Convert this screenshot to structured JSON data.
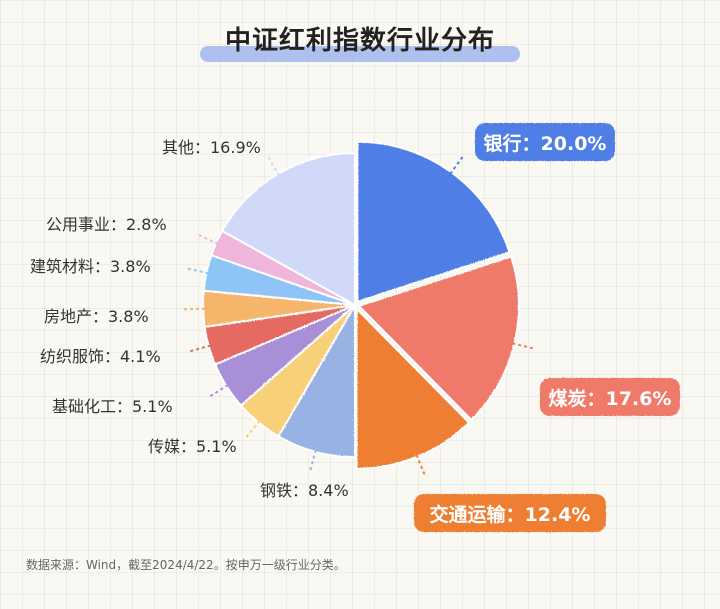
{
  "chart_data": {
    "type": "pie",
    "title": "中证红利指数行业分布",
    "slices": [
      {
        "label": "银行：20.0%",
        "value": 20.0,
        "color": "#4f7fe6",
        "callout": true
      },
      {
        "label": "煤炭：17.6%",
        "value": 17.6,
        "color": "#f07a6a",
        "callout": true
      },
      {
        "label": "交通运输：12.4%",
        "value": 12.4,
        "color": "#ee7f32",
        "callout": true
      },
      {
        "label": "钢铁：8.4%",
        "value": 8.4,
        "color": "#98b2e4",
        "callout": false
      },
      {
        "label": "传媒：5.1%",
        "value": 5.1,
        "color": "#f8d07a",
        "callout": false
      },
      {
        "label": "基础化工：5.1%",
        "value": 5.1,
        "color": "#a98fd8",
        "callout": false
      },
      {
        "label": "纺织服饰：4.1%",
        "value": 4.1,
        "color": "#e46a62",
        "callout": false
      },
      {
        "label": "房地产：3.8%",
        "value": 3.8,
        "color": "#f5b56a",
        "callout": false
      },
      {
        "label": "建筑材料：3.8%",
        "value": 3.8,
        "color": "#8fc4f6",
        "callout": false
      },
      {
        "label": "公用事业：2.8%",
        "value": 2.8,
        "color": "#efb5da",
        "callout": false
      },
      {
        "label": "其他：16.9%",
        "value": 16.9,
        "color": "#d0d9f7",
        "callout": false
      }
    ]
  },
  "source": "数据来源：Wind，截至2024/4/22。按申万一级行业分类。"
}
